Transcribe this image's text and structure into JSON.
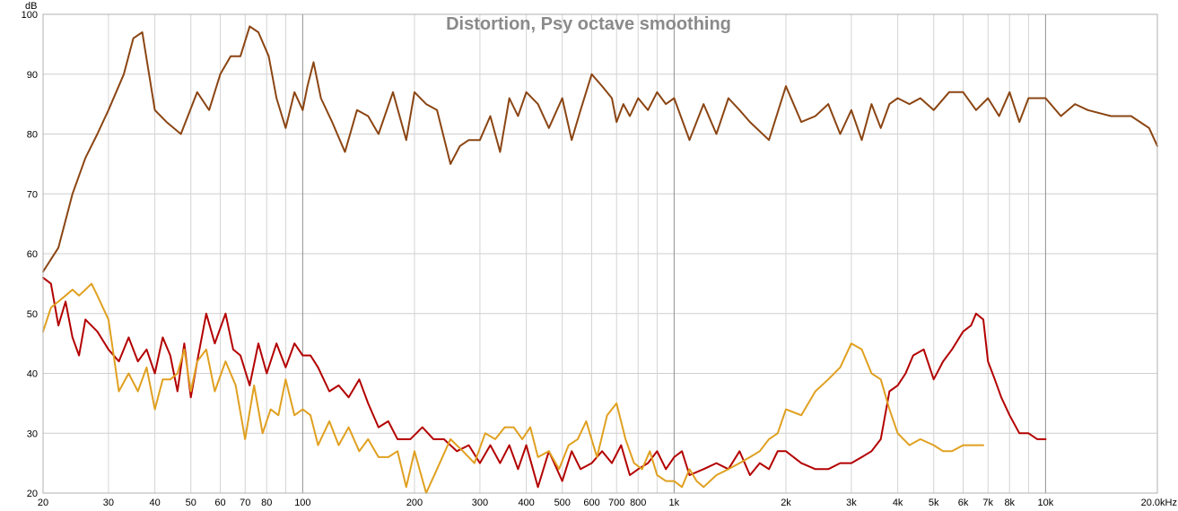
{
  "chart_data": {
    "type": "line",
    "title": "Distortion, Psy octave smoothing",
    "y_unit_label": "dB",
    "x_scale": "log",
    "xlim": [
      20,
      20000
    ],
    "ylim": [
      20,
      100
    ],
    "grid": true,
    "legend": "none",
    "y_ticks": [
      20,
      30,
      40,
      50,
      60,
      70,
      80,
      90,
      100
    ],
    "x_ticks": [
      {
        "value": 20,
        "label": "20"
      },
      {
        "value": 30,
        "label": "30"
      },
      {
        "value": 40,
        "label": "40"
      },
      {
        "value": 50,
        "label": "50"
      },
      {
        "value": 60,
        "label": "60"
      },
      {
        "value": 70,
        "label": "70"
      },
      {
        "value": 80,
        "label": "80"
      },
      {
        "value": 100,
        "label": "100"
      },
      {
        "value": 200,
        "label": "200"
      },
      {
        "value": 300,
        "label": "300"
      },
      {
        "value": 400,
        "label": "400"
      },
      {
        "value": 500,
        "label": "500"
      },
      {
        "value": 600,
        "label": "600"
      },
      {
        "value": 700,
        "label": "700"
      },
      {
        "value": 800,
        "label": "800"
      },
      {
        "value": 1000,
        "label": "1k"
      },
      {
        "value": 2000,
        "label": "2k"
      },
      {
        "value": 3000,
        "label": "3k"
      },
      {
        "value": 4000,
        "label": "4k"
      },
      {
        "value": 5000,
        "label": "5k"
      },
      {
        "value": 6000,
        "label": "6k"
      },
      {
        "value": 7000,
        "label": "7k"
      },
      {
        "value": 8000,
        "label": "8k"
      },
      {
        "value": 10000,
        "label": "10k"
      },
      {
        "value": 20000,
        "label": "20.0kHz"
      }
    ],
    "series": [
      {
        "color": "#8b4513",
        "x": [
          20,
          22,
          24,
          26,
          28,
          30,
          33,
          35,
          37,
          40,
          43,
          47,
          52,
          56,
          60,
          64,
          68,
          72,
          76,
          81,
          85,
          90,
          95,
          100,
          103,
          107,
          112,
          120,
          130,
          140,
          150,
          160,
          175,
          190,
          200,
          215,
          230,
          250,
          265,
          280,
          300,
          320,
          340,
          360,
          380,
          400,
          430,
          460,
          500,
          530,
          560,
          600,
          640,
          680,
          700,
          730,
          760,
          800,
          850,
          900,
          950,
          1000,
          1100,
          1200,
          1300,
          1400,
          1500,
          1600,
          1800,
          2000,
          2200,
          2400,
          2600,
          2800,
          3000,
          3200,
          3400,
          3600,
          3800,
          4000,
          4300,
          4600,
          5000,
          5500,
          6000,
          6500,
          7000,
          7500,
          8000,
          8500,
          9000,
          10000,
          11000,
          12000,
          13000,
          15000,
          17000,
          19000,
          20000
        ],
        "y": [
          57,
          61,
          70,
          76,
          80,
          84,
          90,
          96,
          97,
          84,
          82,
          80,
          87,
          84,
          90,
          93,
          93,
          98,
          97,
          93,
          86,
          81,
          87,
          84,
          88,
          92,
          86,
          82,
          77,
          84,
          83,
          80,
          87,
          79,
          87,
          85,
          84,
          75,
          78,
          79,
          79,
          83,
          77,
          86,
          83,
          87,
          85,
          81,
          86,
          79,
          84,
          90,
          88,
          86,
          82,
          85,
          83,
          86,
          84,
          87,
          85,
          86,
          79,
          85,
          80,
          86,
          84,
          82,
          79,
          88,
          82,
          83,
          85,
          80,
          84,
          79,
          85,
          81,
          85,
          86,
          85,
          86,
          84,
          87,
          87,
          84,
          86,
          83,
          87,
          82,
          86,
          86,
          83,
          85,
          84,
          83,
          83,
          81,
          78
        ]
      },
      {
        "color": "#b30000",
        "x": [
          20,
          21,
          22,
          23,
          24,
          25,
          26,
          28,
          30,
          32,
          34,
          36,
          38,
          40,
          42,
          44,
          46,
          48,
          50,
          52,
          55,
          58,
          62,
          65,
          68,
          72,
          76,
          80,
          85,
          90,
          95,
          100,
          105,
          110,
          118,
          125,
          133,
          142,
          150,
          160,
          170,
          180,
          195,
          210,
          225,
          240,
          260,
          280,
          300,
          320,
          340,
          360,
          380,
          400,
          430,
          460,
          500,
          530,
          560,
          600,
          640,
          680,
          720,
          760,
          800,
          850,
          900,
          950,
          1000,
          1050,
          1100,
          1200,
          1300,
          1400,
          1500,
          1600,
          1700,
          1800,
          1900,
          2000,
          2200,
          2400,
          2600,
          2800,
          3000,
          3200,
          3400,
          3600,
          3800,
          4000,
          4200,
          4400,
          4700,
          5000,
          5300,
          5600,
          6000,
          6300,
          6500,
          6800,
          7000,
          7300,
          7600,
          8000,
          8500,
          9000,
          9500,
          10000
        ],
        "y": [
          56,
          55,
          48,
          52,
          46,
          43,
          49,
          47,
          44,
          42,
          46,
          42,
          44,
          40,
          46,
          43,
          37,
          45,
          36,
          42,
          50,
          45,
          50,
          44,
          43,
          38,
          45,
          40,
          45,
          41,
          45,
          43,
          43,
          41,
          37,
          38,
          36,
          39,
          35,
          31,
          32,
          29,
          29,
          31,
          29,
          29,
          27,
          28,
          25,
          28,
          25,
          28,
          24,
          28,
          21,
          27,
          22,
          27,
          24,
          25,
          27,
          25,
          28,
          23,
          24,
          25,
          27,
          24,
          26,
          27,
          23,
          24,
          25,
          24,
          27,
          23,
          25,
          24,
          27,
          27,
          25,
          24,
          24,
          25,
          25,
          26,
          27,
          29,
          37,
          38,
          40,
          43,
          44,
          39,
          42,
          44,
          47,
          48,
          50,
          49,
          42,
          39,
          36,
          33,
          30,
          30,
          29,
          29
        ]
      },
      {
        "color": "#e0a020",
        "x": [
          20,
          21,
          22,
          23,
          24,
          25,
          26,
          27,
          28,
          30,
          32,
          34,
          36,
          38,
          40,
          42,
          44,
          46,
          48,
          50,
          52,
          55,
          58,
          62,
          66,
          70,
          74,
          78,
          82,
          86,
          90,
          95,
          100,
          105,
          110,
          118,
          125,
          133,
          142,
          150,
          160,
          170,
          180,
          190,
          200,
          215,
          230,
          250,
          270,
          290,
          310,
          330,
          350,
          370,
          390,
          410,
          430,
          460,
          490,
          520,
          550,
          580,
          620,
          660,
          700,
          740,
          780,
          820,
          860,
          900,
          950,
          1000,
          1050,
          1100,
          1150,
          1200,
          1300,
          1400,
          1500,
          1600,
          1700,
          1800,
          1900,
          2000,
          2200,
          2400,
          2600,
          2800,
          3000,
          3200,
          3400,
          3600,
          3800,
          4000,
          4300,
          4600,
          5000,
          5300,
          5600,
          6000,
          6500,
          6800
        ],
        "y": [
          47,
          51,
          52,
          53,
          54,
          53,
          54,
          55,
          53,
          49,
          37,
          40,
          37,
          41,
          34,
          39,
          39,
          40,
          44,
          37,
          42,
          44,
          37,
          42,
          38,
          29,
          38,
          30,
          34,
          33,
          39,
          33,
          34,
          33,
          28,
          32,
          28,
          31,
          27,
          29,
          26,
          26,
          27,
          21,
          27,
          20,
          24,
          29,
          27,
          25,
          30,
          29,
          31,
          31,
          29,
          31,
          26,
          27,
          24,
          28,
          29,
          32,
          26,
          33,
          35,
          29,
          25,
          24,
          27,
          23,
          22,
          22,
          21,
          24,
          22,
          21,
          23,
          24,
          25,
          26,
          27,
          29,
          30,
          34,
          33,
          37,
          39,
          41,
          45,
          44,
          40,
          39,
          34,
          30,
          28,
          29,
          28,
          27,
          27,
          28,
          28,
          28
        ]
      }
    ]
  }
}
